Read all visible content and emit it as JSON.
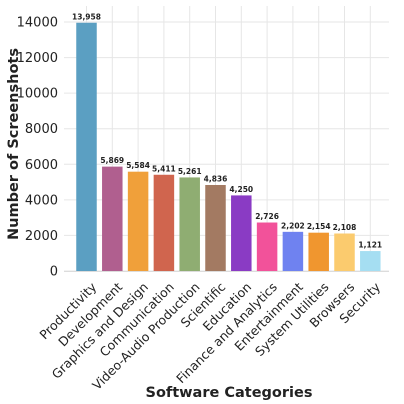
{
  "chart_data": {
    "type": "bar",
    "xlabel": "Software Categories",
    "ylabel": "Number of Screenshots",
    "ylim": [
      0,
      14900
    ],
    "yticks": [
      0,
      2000,
      4000,
      6000,
      8000,
      10000,
      12000,
      14000
    ],
    "grid": true,
    "categories": [
      "Productivity",
      "Development",
      "Graphics and Design",
      "Communication",
      "Video-Audio Production",
      "Scientific",
      "Education",
      "Finance and Analytics",
      "Entertainment",
      "System Utilities",
      "Browsers",
      "Security"
    ],
    "values": [
      13958,
      5869,
      5584,
      5411,
      5261,
      4836,
      4250,
      2726,
      2202,
      2154,
      2108,
      1121
    ],
    "value_labels": [
      "13,958",
      "5,869",
      "5,584",
      "5,411",
      "5,261",
      "4,836",
      "4,250",
      "2,726",
      "2,202",
      "2,154",
      "2,108",
      "1,121"
    ],
    "colors": [
      "#5b9fc2",
      "#b05f8f",
      "#f0a03a",
      "#d0654e",
      "#8fad72",
      "#a37a62",
      "#8a3bc4",
      "#f2529a",
      "#6f82f0",
      "#f0962f",
      "#fbcb6e",
      "#a5def2"
    ]
  }
}
